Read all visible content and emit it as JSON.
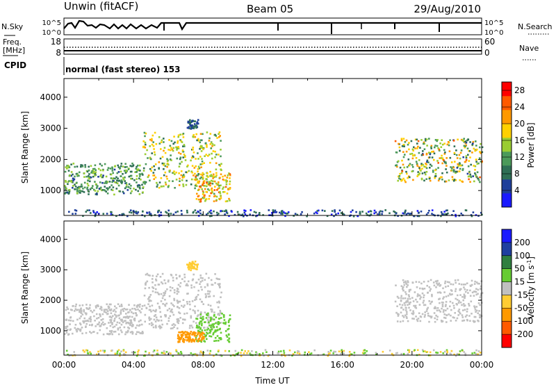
{
  "header": {
    "radar": "Unwin (fitACF)",
    "beam": "Beam 05",
    "date": "29/Aug/2010"
  },
  "noise_panel": {
    "left_label": "N.Sky",
    "right_label": "N.Search",
    "ticks": [
      "10^5",
      "10^0"
    ]
  },
  "freq_panel": {
    "left_label_line1": "Freq.",
    "left_label_line2": "[MHz]",
    "left_ticks": [
      "18",
      "8"
    ],
    "right_label": "Nave",
    "right_ticks": [
      "60",
      "0"
    ]
  },
  "cpid": {
    "label": "CPID",
    "value": "normal (fast stereo) 153"
  },
  "colors": {
    "power": [
      "#1a1aff",
      "#1f3f9a",
      "#2f6f55",
      "#4c9a5a",
      "#9acd32",
      "#ffd000",
      "#ff9900",
      "#ff5a00",
      "#ff0000"
    ],
    "velocity": [
      "#ff0000",
      "#ff5a00",
      "#ff9900",
      "#ffcc33",
      "#c0c0c0",
      "#66cc33",
      "#2f7f3f",
      "#1f3fa0",
      "#1a1aff"
    ]
  },
  "chart_data": [
    {
      "type": "heatmap",
      "title": "",
      "xlabel": "",
      "ylabel": "Slant Range [km]",
      "xlim": [
        "00:00",
        "24:00"
      ],
      "ylim": [
        200,
        4600
      ],
      "yticks": [
        1000,
        2000,
        3000,
        4000
      ],
      "colorbar": {
        "label": "Power [dB]",
        "ticks": [
          4,
          8,
          12,
          16,
          20,
          24,
          28
        ],
        "range": [
          0,
          30
        ]
      },
      "echo_regions": [
        {
          "start": "00:00",
          "end": "04:30",
          "range_km": [
            900,
            1900
          ],
          "power_db": [
            6,
            16
          ]
        },
        {
          "start": "04:30",
          "end": "09:00",
          "range_km": [
            1100,
            2900
          ],
          "power_db": [
            8,
            22
          ]
        },
        {
          "start": "07:30",
          "end": "09:30",
          "range_km": [
            650,
            1600
          ],
          "power_db": [
            12,
            26
          ]
        },
        {
          "start": "07:00",
          "end": "07:40",
          "range_km": [
            3000,
            3300
          ],
          "power_db": [
            4,
            10
          ]
        },
        {
          "start": "19:00",
          "end": "24:00",
          "range_km": [
            1300,
            2700
          ],
          "power_db": [
            6,
            24
          ]
        },
        {
          "start": "00:00",
          "end": "24:00",
          "range_km": [
            200,
            400
          ],
          "power_db": [
            2,
            10
          ]
        }
      ]
    },
    {
      "type": "heatmap",
      "title": "",
      "xlabel": "Time UT",
      "ylabel": "Slant Range [km]",
      "xlim": [
        "00:00",
        "24:00"
      ],
      "ylim": [
        200,
        4600
      ],
      "xticks": [
        "00:00",
        "04:00",
        "08:00",
        "12:00",
        "16:00",
        "20:00",
        "00:00"
      ],
      "yticks": [
        1000,
        2000,
        3000,
        4000
      ],
      "colorbar": {
        "label": "Velocity [m s^-1]",
        "ticks": [
          "200",
          "100",
          "50",
          "15",
          "-15",
          "-50",
          "-100",
          "-200"
        ]
      },
      "echo_regions": [
        {
          "start": "00:00",
          "end": "04:30",
          "range_km": [
            900,
            1900
          ],
          "velocity_ms": [
            -15,
            15
          ]
        },
        {
          "start": "04:30",
          "end": "09:00",
          "range_km": [
            1100,
            2900
          ],
          "velocity_ms": [
            -15,
            15
          ]
        },
        {
          "start": "07:30",
          "end": "09:30",
          "range_km": [
            650,
            1600
          ],
          "velocity_ms": [
            15,
            50
          ]
        },
        {
          "start": "06:30",
          "end": "08:00",
          "range_km": [
            650,
            1000
          ],
          "velocity_ms": [
            -100,
            -50
          ]
        },
        {
          "start": "07:00",
          "end": "07:40",
          "range_km": [
            3000,
            3300
          ],
          "velocity_ms": [
            -50,
            -15
          ]
        },
        {
          "start": "19:00",
          "end": "24:00",
          "range_km": [
            1300,
            2700
          ],
          "velocity_ms": [
            -15,
            15
          ]
        },
        {
          "start": "00:00",
          "end": "24:00",
          "range_km": [
            200,
            400
          ],
          "velocity_ms": [
            -50,
            50
          ]
        }
      ]
    }
  ]
}
